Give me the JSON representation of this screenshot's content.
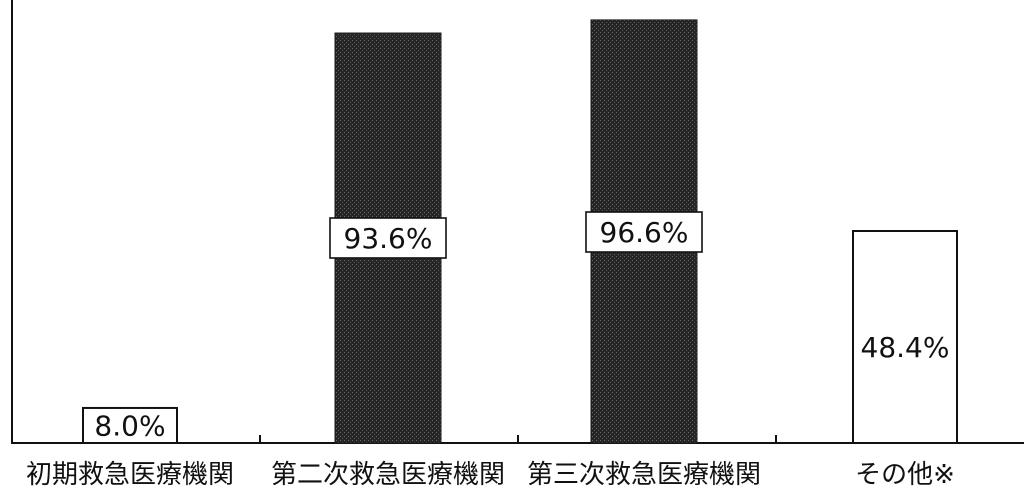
{
  "chart_data": {
    "type": "bar",
    "categories": [
      "初期救急医療機関",
      "第二次救急医療機関",
      "第三次救急医療機関",
      "その他※"
    ],
    "values": [
      8.0,
      93.6,
      96.6,
      48.4
    ],
    "value_labels": [
      "8.0%",
      "93.6%",
      "96.6%",
      "48.4%"
    ],
    "bar_styles": [
      "light",
      "dark",
      "dark",
      "light"
    ],
    "title": "",
    "xlabel": "",
    "ylabel": "",
    "ylim": [
      0,
      100
    ],
    "grid": false,
    "legend": "none",
    "colors": {
      "dark_bar": "#2a2a2a",
      "light_bar": "#ffffff",
      "outline": "#111111"
    }
  }
}
